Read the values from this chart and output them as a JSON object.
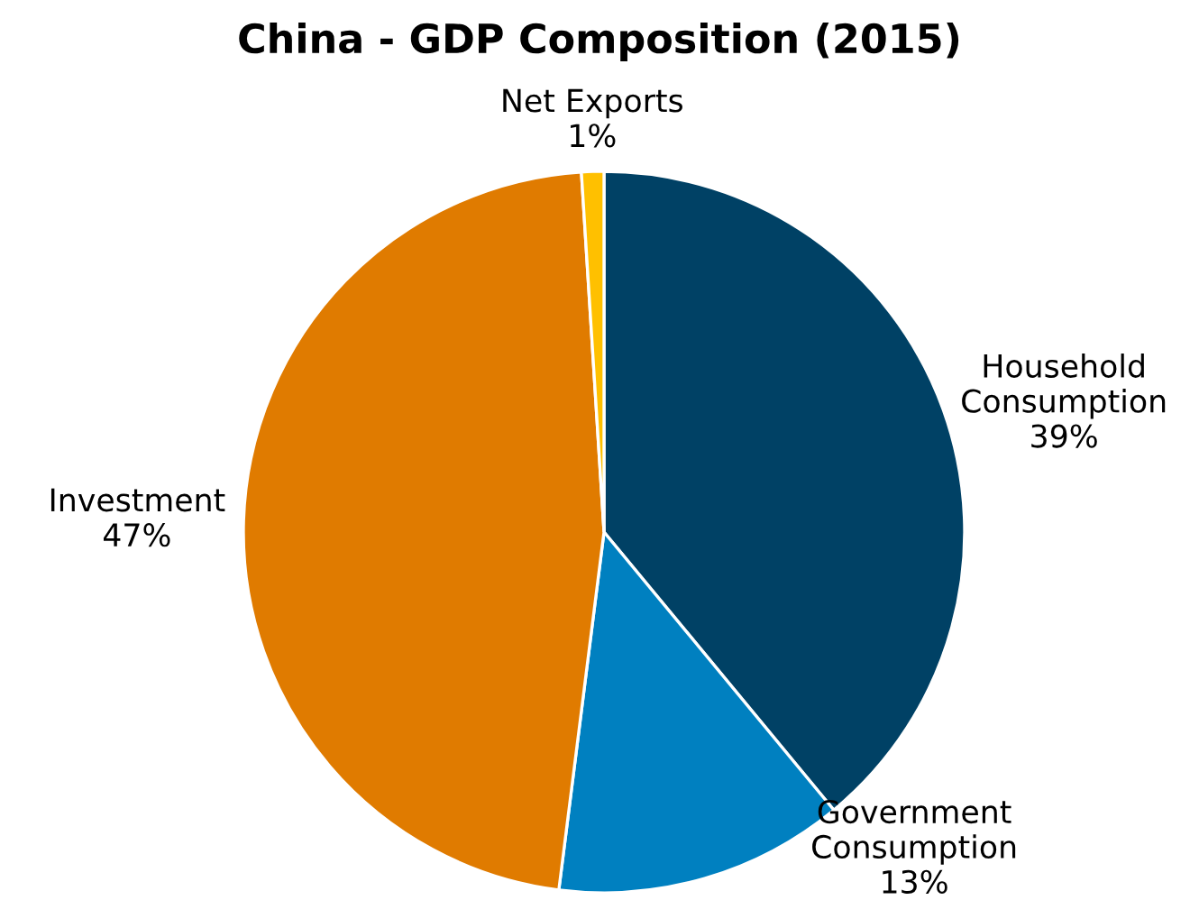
{
  "chart_data": {
    "type": "pie",
    "title": "China - GDP Composition (2015)",
    "categories": [
      "Household\nConsumption",
      "Government\nConsumption",
      "Investment",
      "Net Exports"
    ],
    "values": [
      39,
      13,
      47,
      1
    ],
    "value_labels": [
      "39%",
      "13%",
      "47%",
      "1%"
    ],
    "colors": [
      "#004165",
      "#0080c0",
      "#e07b00",
      "#ffc000"
    ]
  }
}
